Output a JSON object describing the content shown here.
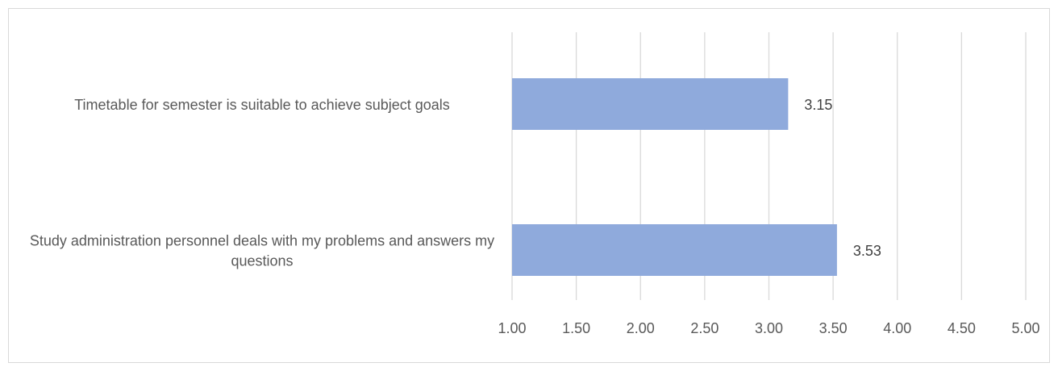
{
  "chart_data": {
    "type": "bar",
    "orientation": "horizontal",
    "categories": [
      "Timetable for semester is suitable to achieve subject goals",
      "Study administration personnel deals with my problems and answers my questions"
    ],
    "values": [
      3.15,
      3.53
    ],
    "xlim": [
      1.0,
      5.0
    ],
    "xticks": [
      "1.00",
      "1.50",
      "2.00",
      "2.50",
      "3.00",
      "3.50",
      "4.00",
      "4.50",
      "5.00"
    ],
    "data_labels": [
      "3.15",
      "3.53"
    ],
    "bar_color": "#8faadc",
    "gridline_color": "#d9d9d9",
    "grid": true,
    "legend": "none",
    "title": "",
    "xlabel": "",
    "ylabel": ""
  }
}
